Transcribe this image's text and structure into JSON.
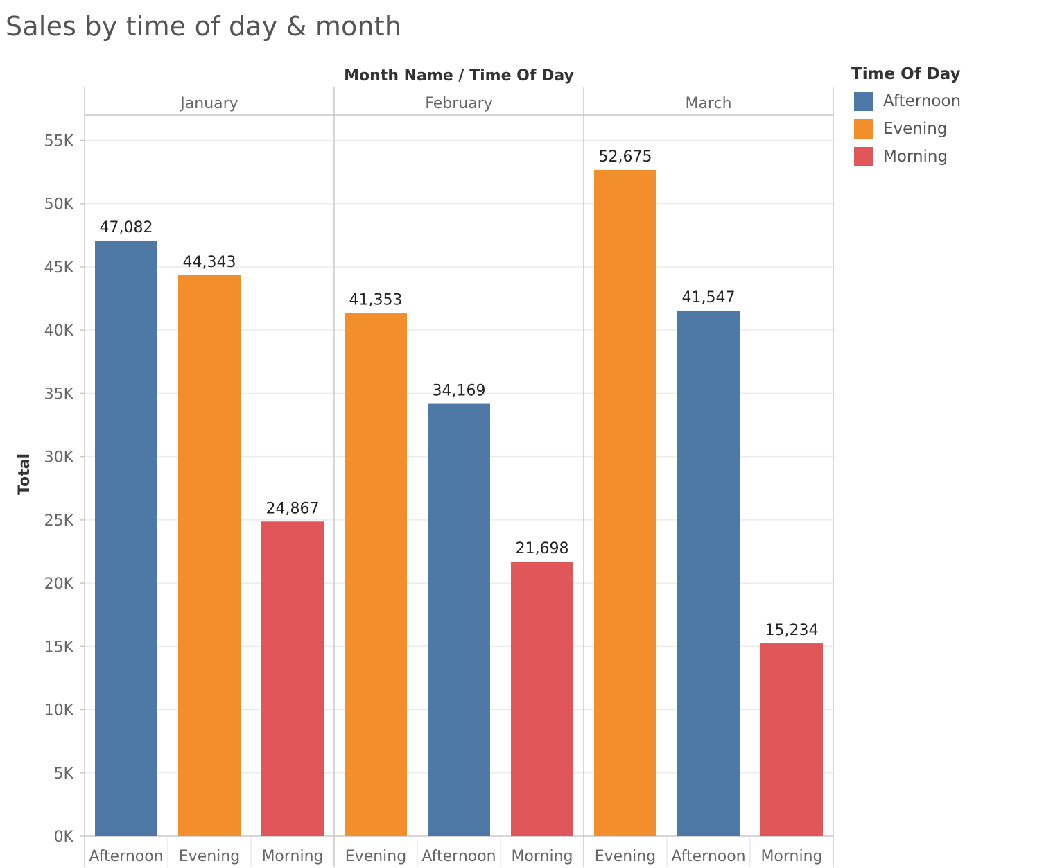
{
  "title": "Sales by time of day & month",
  "legend": {
    "title": "Time Of Day",
    "items": [
      {
        "label": "Afternoon",
        "color": "#4e79a7"
      },
      {
        "label": "Evening",
        "color": "#f28e2b"
      },
      {
        "label": "Morning",
        "color": "#e15759"
      }
    ]
  },
  "chart_data": {
    "type": "bar",
    "title": "Sales by time of day & month",
    "column_header": "Month Name  /  Time Of Day",
    "ylabel": "Total",
    "xlabel": "",
    "ylim": [
      0,
      57000
    ],
    "yticks": [
      0,
      5000,
      10000,
      15000,
      20000,
      25000,
      30000,
      35000,
      40000,
      45000,
      50000,
      55000
    ],
    "ytick_labels": [
      "0K",
      "5K",
      "10K",
      "15K",
      "20K",
      "25K",
      "30K",
      "35K",
      "40K",
      "45K",
      "50K",
      "55K"
    ],
    "grid": true,
    "legend_position": "right",
    "groups": [
      {
        "month": "January",
        "bars": [
          {
            "category": "Afternoon",
            "value": 47082,
            "label": "47,082",
            "color": "#4e79a7"
          },
          {
            "category": "Evening",
            "value": 44343,
            "label": "44,343",
            "color": "#f28e2b"
          },
          {
            "category": "Morning",
            "value": 24867,
            "label": "24,867",
            "color": "#e15759"
          }
        ]
      },
      {
        "month": "February",
        "bars": [
          {
            "category": "Evening",
            "value": 41353,
            "label": "41,353",
            "color": "#f28e2b"
          },
          {
            "category": "Afternoon",
            "value": 34169,
            "label": "34,169",
            "color": "#4e79a7"
          },
          {
            "category": "Morning",
            "value": 21698,
            "label": "21,698",
            "color": "#e15759"
          }
        ]
      },
      {
        "month": "March",
        "bars": [
          {
            "category": "Evening",
            "value": 52675,
            "label": "52,675",
            "color": "#f28e2b"
          },
          {
            "category": "Afternoon",
            "value": 41547,
            "label": "41,547",
            "color": "#4e79a7"
          },
          {
            "category": "Morning",
            "value": 15234,
            "label": "15,234",
            "color": "#e15759"
          }
        ]
      }
    ]
  }
}
